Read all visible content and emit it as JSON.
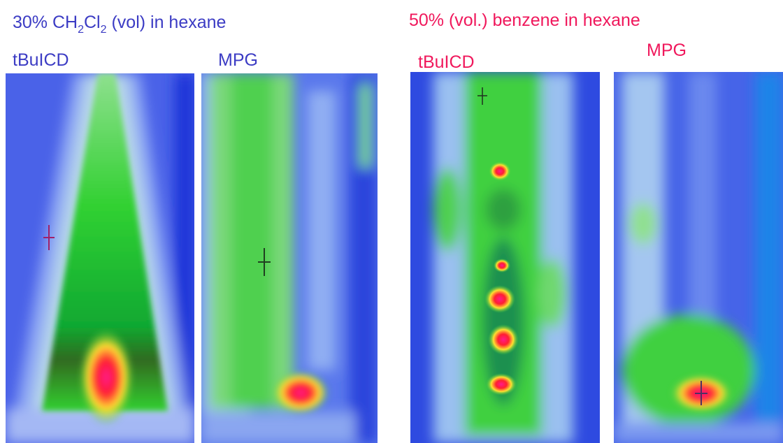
{
  "left_group": {
    "title_parts": [
      "30% CH",
      "2",
      "Cl",
      "2",
      " (vol) in hexane"
    ],
    "panels": [
      {
        "label": "tBuICD"
      },
      {
        "label": "MPG"
      }
    ]
  },
  "right_group": {
    "title": "50% (vol.) benzene in hexane",
    "panels": [
      {
        "label": "tBuICD"
      },
      {
        "label": "MPG"
      }
    ]
  }
}
